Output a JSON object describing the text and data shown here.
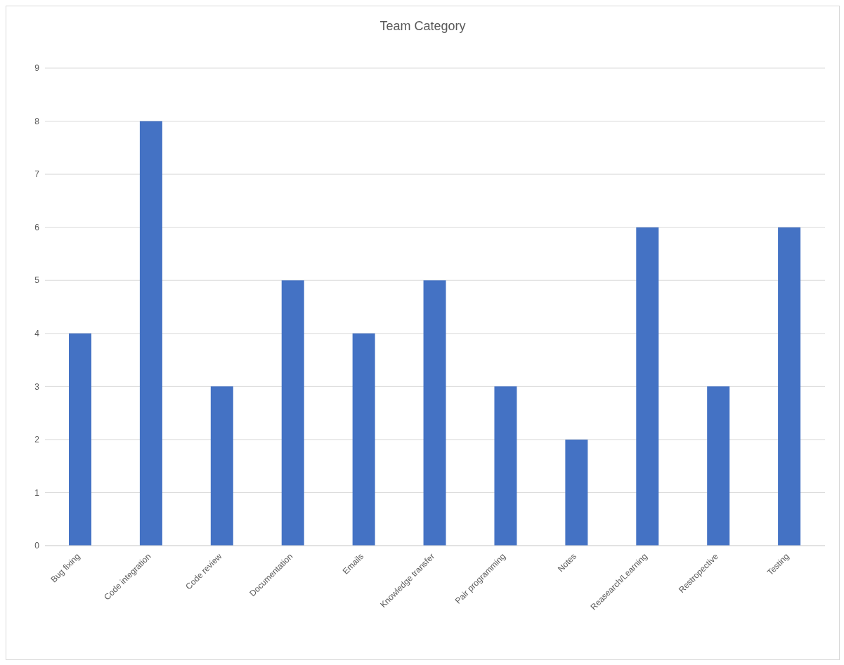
{
  "chart_data": {
    "type": "bar",
    "title": "Team Category",
    "categories": [
      "Bug fixing",
      "Code integration",
      "Code review",
      "Documentation",
      "Emails",
      "Knowledge transfer",
      "Pair programming",
      "Notes",
      "Reasearch/Learning",
      "Restropective",
      "Testing"
    ],
    "values": [
      4,
      8,
      3,
      5,
      4,
      5,
      3,
      2,
      6,
      3,
      6
    ],
    "color": "#4472c4",
    "ylim": [
      0,
      9
    ],
    "yticks": [
      0,
      1,
      2,
      3,
      4,
      5,
      6,
      7,
      8,
      9
    ],
    "grid": "y"
  }
}
